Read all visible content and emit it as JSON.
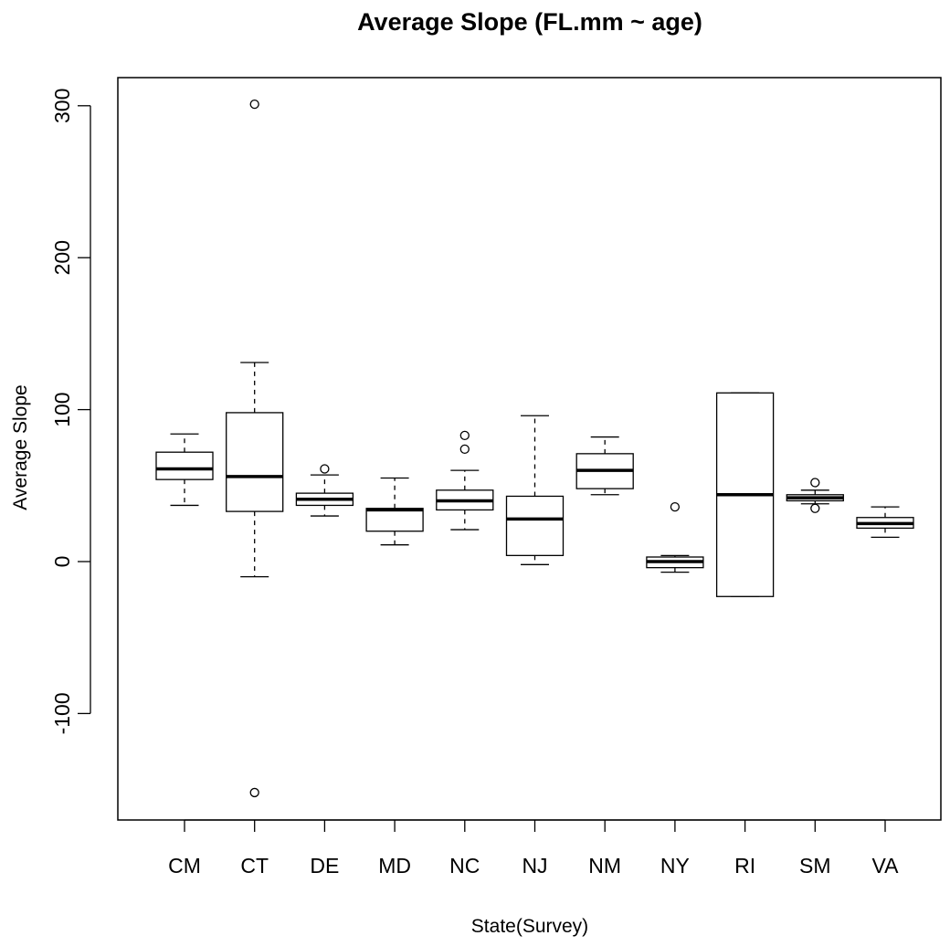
{
  "chart_data": {
    "type": "boxplot",
    "title": "Average Slope (FL.mm ~ age)",
    "xlabel": "State(Survey)",
    "ylabel": "Average Slope",
    "ylim": [
      -170,
      320
    ],
    "yticks": [
      -100,
      0,
      100,
      200,
      300
    ],
    "grid": false,
    "legend": "none",
    "categories": [
      "CM",
      "CT",
      "DE",
      "MD",
      "NC",
      "NJ",
      "NM",
      "NY",
      "RI",
      "SM",
      "VA"
    ],
    "boxes": [
      {
        "category": "CM",
        "whisker_low": 37,
        "q1": 54,
        "median": 61,
        "q3": 72,
        "whisker_high": 84,
        "outliers": []
      },
      {
        "category": "CT",
        "whisker_low": -10,
        "q1": 33,
        "median": 56,
        "q3": 98,
        "whisker_high": 131,
        "outliers": [
          301,
          -152
        ]
      },
      {
        "category": "DE",
        "whisker_low": 30,
        "q1": 37,
        "median": 41,
        "q3": 45,
        "whisker_high": 57,
        "outliers": [
          61
        ]
      },
      {
        "category": "MD",
        "whisker_low": 11,
        "q1": 20,
        "median": 34,
        "q3": 35,
        "whisker_high": 55,
        "outliers": []
      },
      {
        "category": "NC",
        "whisker_low": 21,
        "q1": 34,
        "median": 40,
        "q3": 47,
        "whisker_high": 60,
        "outliers": [
          74,
          83
        ]
      },
      {
        "category": "NJ",
        "whisker_low": -2,
        "q1": 4,
        "median": 28,
        "q3": 43,
        "whisker_high": 96,
        "outliers": []
      },
      {
        "category": "NM",
        "whisker_low": 44,
        "q1": 48,
        "median": 60,
        "q3": 71,
        "whisker_high": 82,
        "outliers": []
      },
      {
        "category": "NY",
        "whisker_low": -7,
        "q1": -4,
        "median": 0,
        "q3": 3,
        "whisker_high": 4,
        "outliers": [
          36
        ]
      },
      {
        "category": "RI",
        "whisker_low": -23,
        "q1": -23,
        "median": 44,
        "q3": 111,
        "whisker_high": 111,
        "outliers": []
      },
      {
        "category": "SM",
        "whisker_low": 38,
        "q1": 40,
        "median": 42,
        "q3": 44,
        "whisker_high": 47,
        "outliers": [
          52,
          35
        ]
      },
      {
        "category": "VA",
        "whisker_low": 16,
        "q1": 22,
        "median": 25,
        "q3": 29,
        "whisker_high": 36,
        "outliers": []
      }
    ]
  }
}
